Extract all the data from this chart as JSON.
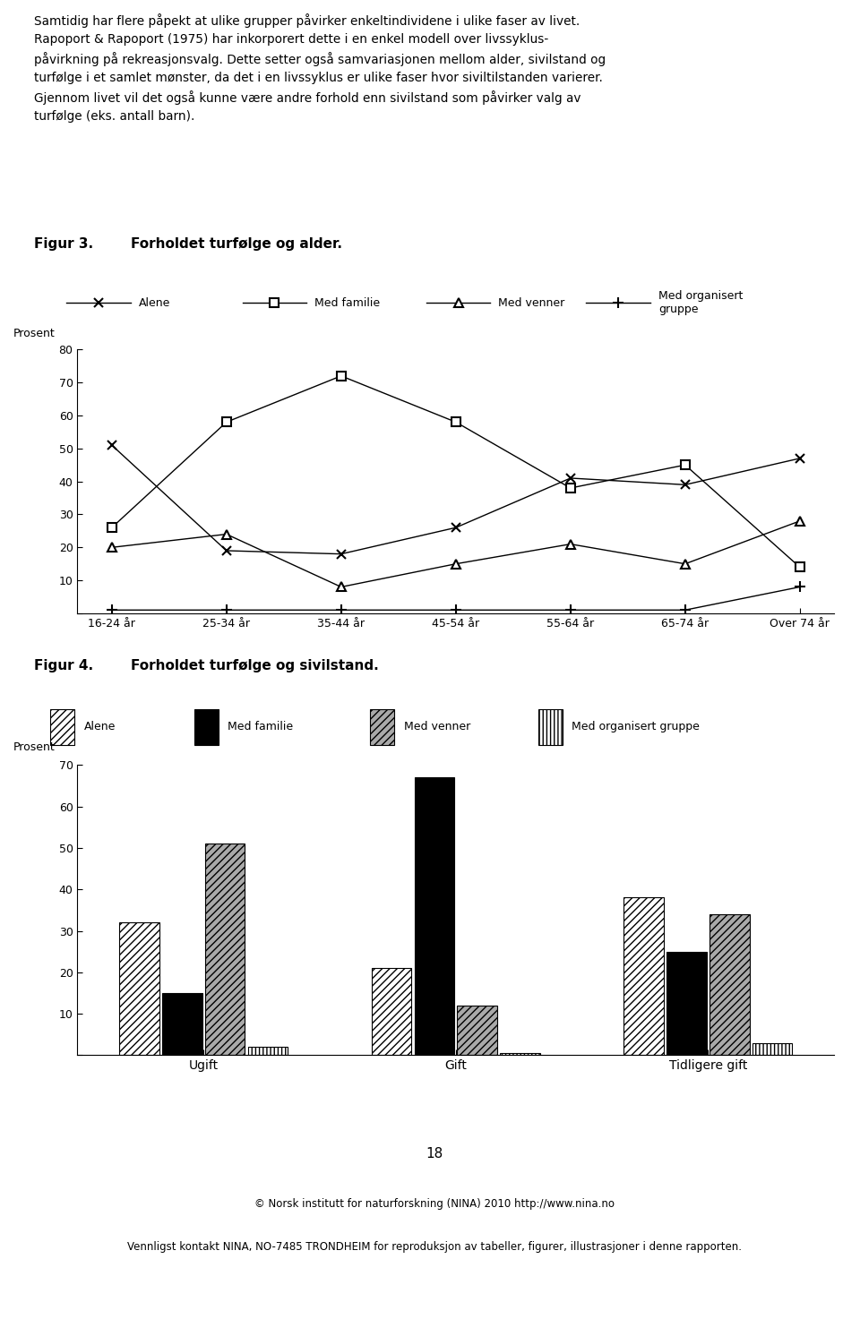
{
  "intro_text_lines": [
    "Samtidig har flere påpekt at ulike grupper påvirker enkeltindividene i ulike faser av livet.",
    "Rapoport & Rapoport (1975) har inkorporert dette i en enkel modell over livssyklus-",
    "påvirkning på rekreasjonsvalg. Dette setter også samvariasjonen mellom alder, sivilstand og",
    "turfølge i et samlet mønster, da det i en livssyklus er ulike faser hvor siviltilstanden varierer.",
    "Gjennom livet vil det også kunne være andre forhold enn sivilstand som påvirker valg av",
    "turfølge (eks. antall barn)."
  ],
  "fig3_title": "Figur 3.",
  "fig3_subtitle": "Forholdet turfølge og alder.",
  "fig3_xlabel_categories": [
    "16-24 år",
    "25-34 år",
    "35-44 år",
    "45-54 år",
    "55-64 år",
    "65-74 år",
    "Over 74 år"
  ],
  "fig3_ylabel": "Prosent",
  "fig3_ylim": [
    0,
    80
  ],
  "fig3_yticks": [
    0,
    10,
    20,
    30,
    40,
    50,
    60,
    70,
    80
  ],
  "fig3_series": {
    "Alene": [
      51,
      19,
      18,
      26,
      41,
      39,
      47
    ],
    "Med familie": [
      26,
      58,
      72,
      58,
      38,
      45,
      14
    ],
    "Med venner": [
      20,
      24,
      8,
      15,
      21,
      15,
      28
    ],
    "Med organisert gruppe": [
      1,
      1,
      1,
      1,
      1,
      1,
      8
    ]
  },
  "fig3_markers": {
    "Alene": "x",
    "Med familie": "s",
    "Med venner": "^",
    "Med organisert gruppe": "+"
  },
  "fig4_title": "Figur 4.",
  "fig4_subtitle": "Forholdet turfølge og sivilstand.",
  "fig4_categories": [
    "Ugift",
    "Gift",
    "Tidligere gift"
  ],
  "fig4_ylabel": "Prosent",
  "fig4_ylim": [
    0,
    70
  ],
  "fig4_yticks": [
    0,
    10,
    20,
    30,
    40,
    50,
    60,
    70
  ],
  "fig4_series": {
    "Alene": [
      32,
      21,
      38
    ],
    "Med familie": [
      15,
      67,
      25
    ],
    "Med venner": [
      51,
      12,
      34
    ],
    "Med organisert gruppe": [
      2,
      0.5,
      3
    ]
  },
  "fig4_hatches": [
    "////",
    "",
    "////",
    "||||"
  ],
  "fig4_facecolors": [
    "white",
    "black",
    "darkgray",
    "white"
  ],
  "footer_page": "18",
  "footer_line1": "© Norsk institutt for naturforskning (NINA) 2010 http://www.nina.no",
  "footer_line2": "Vennligst kontakt NINA, NO-7485 TRONDHEIM for reproduksjon av tabeller, figurer, illustrasjoner i denne rapporten.",
  "bg_color": "#ffffff"
}
